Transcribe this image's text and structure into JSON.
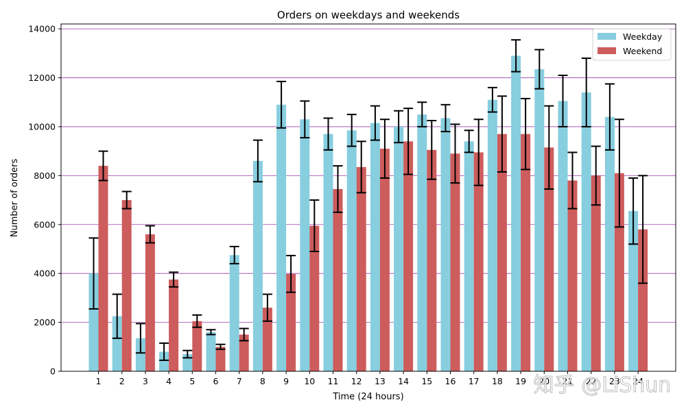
{
  "chart_data": {
    "type": "bar",
    "title": "Orders on weekdays and weekends",
    "xlabel": "Time (24 hours)",
    "ylabel": "Number of orders",
    "ylim": [
      0,
      14200
    ],
    "yticks": [
      0,
      2000,
      4000,
      6000,
      8000,
      10000,
      12000,
      14000
    ],
    "grid": "horizontal",
    "legend_position": "top-right",
    "categories": [
      "1",
      "2",
      "3",
      "4",
      "5",
      "6",
      "7",
      "8",
      "9",
      "10",
      "11",
      "12",
      "13",
      "14",
      "15",
      "16",
      "17",
      "18",
      "19",
      "20",
      "21",
      "22",
      "23",
      "24"
    ],
    "series": [
      {
        "name": "Weekday",
        "color": "#87CEDF",
        "values": [
          4000,
          2250,
          1350,
          800,
          700,
          1600,
          4750,
          8600,
          10900,
          10300,
          9700,
          9850,
          10150,
          10000,
          10500,
          10350,
          9400,
          11100,
          12900,
          12350,
          11050,
          11400,
          10400,
          6550
        ],
        "errors": [
          1450,
          900,
          600,
          350,
          150,
          100,
          350,
          850,
          950,
          750,
          650,
          650,
          700,
          650,
          500,
          550,
          450,
          500,
          650,
          800,
          1050,
          1400,
          1350,
          1350
        ]
      },
      {
        "name": "Weekend",
        "color": "#CD5C5C",
        "values": [
          8400,
          7000,
          5600,
          3750,
          2050,
          1000,
          1500,
          2600,
          3980,
          5950,
          7450,
          8350,
          9100,
          9400,
          9050,
          8900,
          8950,
          9700,
          9700,
          9150,
          7800,
          8000,
          8100,
          5800
        ]
      }
    ],
    "weekend_errors": [
      600,
      350,
      350,
      300,
      250,
      100,
      250,
      550,
      750,
      1050,
      950,
      1050,
      1200,
      1350,
      1200,
      1200,
      1350,
      1550,
      1450,
      1700,
      1150,
      1200,
      2200,
      2200
    ]
  },
  "watermark": "知乎 @LiShun",
  "colors": {
    "grid": "#9B3FA8",
    "error": "#000000",
    "axis": "#000000"
  }
}
